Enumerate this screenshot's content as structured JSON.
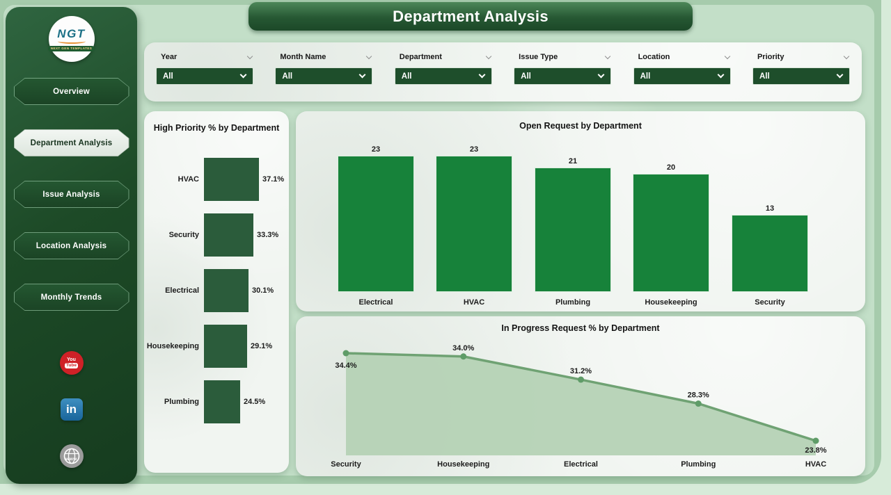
{
  "title": "Department Analysis",
  "sidebar": {
    "logo": {
      "text": "NGT",
      "subtext": "NEXT GEN TEMPLATES"
    },
    "items": [
      {
        "label": "Overview",
        "active": false
      },
      {
        "label": "Department Analysis",
        "active": true
      },
      {
        "label": "Issue Analysis",
        "active": false
      },
      {
        "label": "Location Analysis",
        "active": false
      },
      {
        "label": "Monthly Trends",
        "active": false
      }
    ],
    "social": {
      "youtube": {
        "line1": "You",
        "line2": "Tube"
      },
      "linkedin": {
        "text": "in"
      },
      "website": {
        "text": "www"
      }
    }
  },
  "filters": [
    {
      "label": "Year",
      "value": "All"
    },
    {
      "label": "Month Name",
      "value": "All"
    },
    {
      "label": "Department",
      "value": "All"
    },
    {
      "label": "Issue Type",
      "value": "All"
    },
    {
      "label": "Location",
      "value": "All"
    },
    {
      "label": "Priority",
      "value": "All"
    }
  ],
  "colors": {
    "dark_bar": "#2b5c3b",
    "bright_bar": "#17823a",
    "area_fill": "#b5d2b5",
    "area_line": "#6fa273",
    "area_marker": "#5f9c68",
    "sidebar_green": "#1d4a27",
    "select_green": "#1e4e2b"
  },
  "chart_data": [
    {
      "type": "bar",
      "orientation": "horizontal",
      "title": "High Priority % by Department",
      "categories": [
        "HVAC",
        "Security",
        "Electrical",
        "Housekeeping",
        "Plumbing"
      ],
      "values": [
        37.1,
        33.3,
        30.1,
        29.1,
        24.5
      ],
      "labels": [
        "37.1%",
        "33.3%",
        "30.1%",
        "29.1%",
        "24.5%"
      ],
      "xlabel": "",
      "ylabel": "",
      "xlim": [
        0,
        40
      ],
      "grid": false,
      "legend": false
    },
    {
      "type": "bar",
      "orientation": "vertical",
      "title": "Open Request by Department",
      "categories": [
        "Electrical",
        "HVAC",
        "Plumbing",
        "Housekeeping",
        "Security"
      ],
      "values": [
        23,
        23,
        21,
        20,
        13
      ],
      "labels": [
        "23",
        "23",
        "21",
        "20",
        "13"
      ],
      "xlabel": "",
      "ylabel": "",
      "ylim": [
        0,
        23
      ],
      "grid": false,
      "legend": false
    },
    {
      "type": "area",
      "title": "In Progress Request % by Department",
      "categories": [
        "Security",
        "Housekeeping",
        "Electrical",
        "Plumbing",
        "HVAC"
      ],
      "values": [
        34.4,
        34.0,
        31.2,
        28.3,
        23.8
      ],
      "labels": [
        "34.4%",
        "34.0%",
        "31.2%",
        "28.3%",
        "23.8%"
      ],
      "xlabel": "",
      "ylabel": "",
      "ylim": [
        22,
        38
      ],
      "grid": false,
      "legend": false
    }
  ]
}
